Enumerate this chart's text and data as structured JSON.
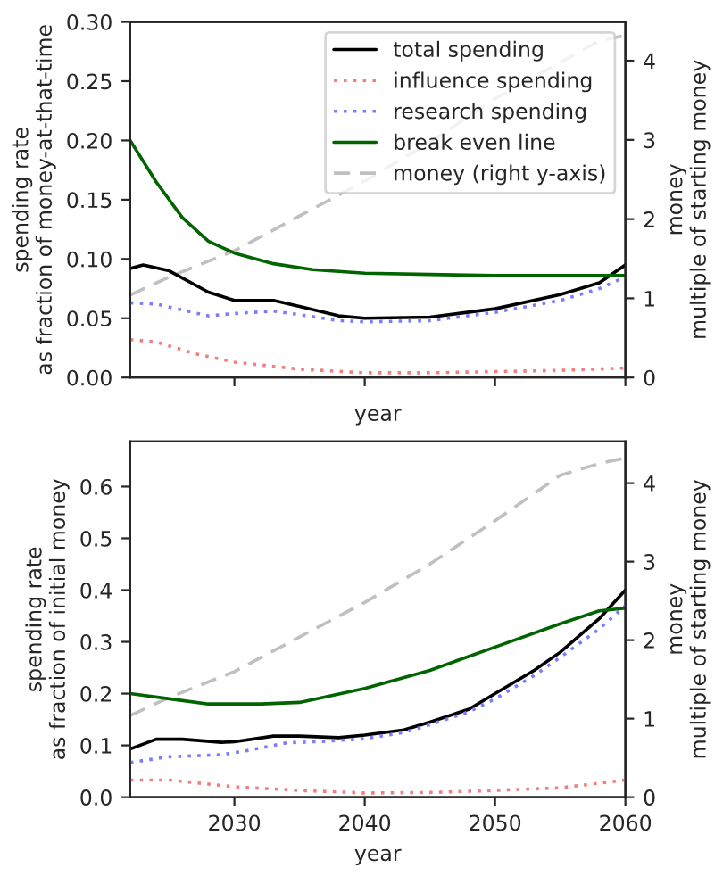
{
  "chart_data": [
    {
      "type": "line",
      "xlabel": "year",
      "ylabel": "spending rate\nas fraction of money-at-that-time",
      "y2label": "money\nmultiple of starting money",
      "xlim": [
        2022,
        2060
      ],
      "xticks": [
        2030,
        2040,
        2050,
        2060
      ],
      "ylim": [
        0,
        0.3
      ],
      "yticks": [
        {
          "value": 0,
          "label": "0.00"
        },
        {
          "value": 0.05,
          "label": "0.05"
        },
        {
          "value": 0.1,
          "label": "0.10"
        },
        {
          "value": 0.15,
          "label": "0.15"
        },
        {
          "value": 0.2,
          "label": "0.20"
        },
        {
          "value": 0.25,
          "label": "0.25"
        },
        {
          "value": 0.3,
          "label": "0.30"
        }
      ],
      "y2lim": [
        0,
        4.49
      ],
      "y2ticks": [
        0,
        1,
        2,
        3,
        4
      ],
      "tick_labels": "y",
      "legend": "top right",
      "grid": false,
      "series": [
        {
          "name": "total spending",
          "color": "#000000",
          "line_style": "solid",
          "x": [
            2022,
            2023,
            2025,
            2028,
            2030,
            2033,
            2035,
            2038,
            2040,
            2045,
            2050,
            2055,
            2058,
            2060
          ],
          "values": [
            0.092,
            0.095,
            0.09,
            0.072,
            0.065,
            0.065,
            0.06,
            0.052,
            0.05,
            0.051,
            0.058,
            0.07,
            0.08,
            0.095
          ]
        },
        {
          "name": "influence spending",
          "color": "#f08080",
          "line_style": "dotted",
          "x": [
            2022,
            2024,
            2027,
            2030,
            2035,
            2040,
            2045,
            2050,
            2055,
            2060
          ],
          "values": [
            0.032,
            0.03,
            0.02,
            0.013,
            0.007,
            0.004,
            0.004,
            0.005,
            0.006,
            0.008
          ]
        },
        {
          "name": "research spending",
          "color": "#7b7bff",
          "line_style": "dotted",
          "x": [
            2022,
            2024,
            2026,
            2028,
            2030,
            2033,
            2035,
            2038,
            2040,
            2045,
            2050,
            2055,
            2058,
            2060
          ],
          "values": [
            0.063,
            0.062,
            0.057,
            0.052,
            0.054,
            0.056,
            0.053,
            0.048,
            0.047,
            0.048,
            0.055,
            0.065,
            0.075,
            0.085
          ]
        },
        {
          "name": "break even line",
          "color": "#006400",
          "line_style": "solid",
          "x": [
            2022,
            2024,
            2026,
            2028,
            2030,
            2033,
            2036,
            2040,
            2045,
            2050,
            2060
          ],
          "values": [
            0.2,
            0.165,
            0.135,
            0.115,
            0.105,
            0.096,
            0.091,
            0.088,
            0.087,
            0.086,
            0.086
          ]
        },
        {
          "name": "money (right y-axis)",
          "color": "#c0c0c0",
          "line_style": "dashed",
          "axis": "y2",
          "x": [
            2022,
            2025,
            2030,
            2035,
            2040,
            2045,
            2050,
            2058,
            2060
          ],
          "values": [
            1.04,
            1.27,
            1.6,
            2.04,
            2.48,
            2.97,
            3.52,
            4.25,
            4.32
          ]
        }
      ]
    },
    {
      "type": "line",
      "xlabel": "year",
      "ylabel": "spending rate\nas fraction of initial money",
      "y2label": "money\nmultiple of starting money",
      "xlim": [
        2022,
        2060
      ],
      "xticks": [
        2030,
        2040,
        2050,
        2060
      ],
      "ylim": [
        0,
        0.687
      ],
      "yticks": [
        {
          "value": 0,
          "label": "0.0"
        },
        0.1,
        0.2,
        0.3,
        0.4,
        0.5,
        0.6
      ],
      "y2lim": [
        0,
        4.53
      ],
      "y2ticks": [
        0,
        1,
        2,
        3,
        4
      ],
      "grid": false,
      "series": [
        {
          "color": "#000000",
          "line_style": "solid",
          "x": [
            2022,
            2024,
            2026,
            2029,
            2030,
            2033,
            2035,
            2038,
            2040,
            2043,
            2045,
            2048,
            2050,
            2053,
            2055,
            2058,
            2060
          ],
          "values": [
            0.093,
            0.112,
            0.112,
            0.106,
            0.107,
            0.118,
            0.118,
            0.115,
            0.12,
            0.13,
            0.145,
            0.17,
            0.2,
            0.245,
            0.28,
            0.345,
            0.4
          ]
        },
        {
          "color": "#f08080",
          "line_style": "dotted",
          "x": [
            2022,
            2025,
            2030,
            2035,
            2040,
            2045,
            2050,
            2055,
            2060
          ],
          "values": [
            0.033,
            0.033,
            0.02,
            0.013,
            0.008,
            0.009,
            0.013,
            0.018,
            0.033
          ]
        },
        {
          "color": "#7b7bff",
          "line_style": "dotted",
          "x": [
            2022,
            2025,
            2029,
            2031,
            2034,
            2037,
            2040,
            2043,
            2045,
            2048,
            2050,
            2053,
            2055,
            2058,
            2060
          ],
          "values": [
            0.067,
            0.078,
            0.082,
            0.09,
            0.105,
            0.108,
            0.113,
            0.125,
            0.14,
            0.165,
            0.19,
            0.235,
            0.27,
            0.325,
            0.37
          ]
        },
        {
          "color": "#006400",
          "line_style": "solid",
          "x": [
            2022,
            2025,
            2028,
            2032,
            2035,
            2040,
            2045,
            2050,
            2055,
            2058,
            2060
          ],
          "values": [
            0.2,
            0.19,
            0.18,
            0.18,
            0.183,
            0.21,
            0.245,
            0.29,
            0.335,
            0.36,
            0.365
          ]
        },
        {
          "color": "#c0c0c0",
          "line_style": "dashed",
          "axis": "y2",
          "x": [
            2022,
            2025,
            2030,
            2035,
            2040,
            2045,
            2050,
            2055,
            2058,
            2060
          ],
          "values": [
            1.04,
            1.27,
            1.6,
            2.04,
            2.48,
            2.97,
            3.52,
            4.1,
            4.25,
            4.32
          ]
        }
      ]
    }
  ]
}
